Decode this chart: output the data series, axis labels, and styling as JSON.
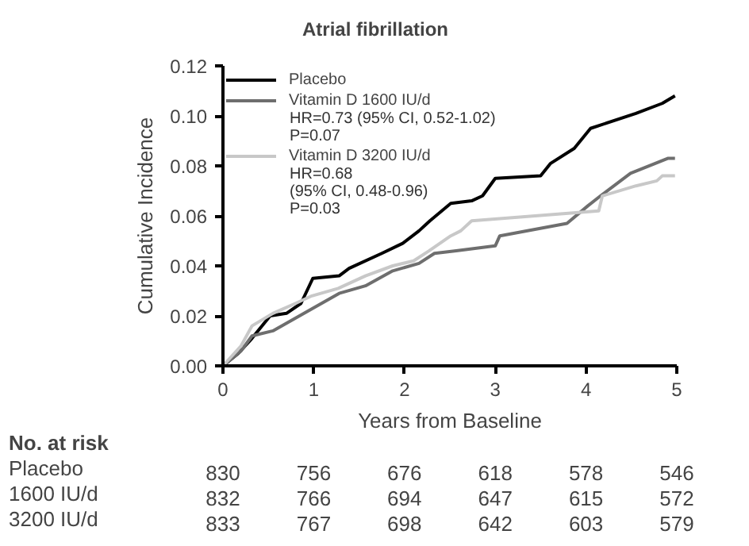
{
  "chart_data": {
    "type": "line",
    "title": "Atrial fibrillation",
    "xlabel": "Years from Baseline",
    "ylabel": "Cumulative Incidence",
    "xlim": [
      0,
      5
    ],
    "ylim": [
      0,
      0.12
    ],
    "xticks": [
      0,
      1,
      2,
      3,
      4,
      5
    ],
    "yticks": [
      {
        "value": 0,
        "label": "0.00"
      },
      {
        "value": 0.02,
        "label": "0.02"
      },
      {
        "value": 0.04,
        "label": "0.04"
      },
      {
        "value": 0.06,
        "label": "0.06"
      },
      {
        "value": 0.08,
        "label": "0.08"
      },
      {
        "value": 0.1,
        "label": "0.10"
      },
      {
        "value": 0.12,
        "label": "0.12"
      }
    ],
    "grid": false,
    "legend": "top left",
    "marker": "none",
    "line_style": "solid",
    "series": [
      {
        "name": "Placebo",
        "color": "#000000",
        "x": [
          0,
          0.17,
          0.32,
          0.52,
          0.7,
          0.86,
          0.99,
          1.28,
          1.39,
          1.75,
          1.98,
          2.16,
          2.28,
          2.51,
          2.74,
          2.86,
          3.0,
          3.5,
          3.61,
          3.87,
          4.05,
          4.55,
          4.84,
          4.98
        ],
        "values": [
          0,
          0.005,
          0.011,
          0.02,
          0.021,
          0.025,
          0.035,
          0.036,
          0.039,
          0.045,
          0.049,
          0.054,
          0.058,
          0.065,
          0.066,
          0.068,
          0.075,
          0.076,
          0.081,
          0.087,
          0.095,
          0.101,
          0.105,
          0.108
        ]
      },
      {
        "name": "Vitamin D 1600 IU/d",
        "color": "#6e6e6e",
        "x": [
          0,
          0.2,
          0.32,
          0.55,
          0.99,
          1.28,
          1.57,
          1.87,
          2.16,
          2.33,
          2.57,
          3.0,
          3.05,
          3.79,
          4.02,
          4.16,
          4.49,
          4.9,
          4.98
        ],
        "values": [
          0,
          0.006,
          0.012,
          0.014,
          0.023,
          0.029,
          0.032,
          0.038,
          0.041,
          0.045,
          0.046,
          0.048,
          0.052,
          0.057,
          0.064,
          0.068,
          0.077,
          0.083,
          0.083
        ]
      },
      {
        "name": "Vitamin D 3200 IU/d",
        "color": "#c8c8c8",
        "x": [
          0,
          0.2,
          0.32,
          0.55,
          0.8,
          0.98,
          1.27,
          1.57,
          1.87,
          2.1,
          2.27,
          2.51,
          2.62,
          2.74,
          4.14,
          4.18,
          4.55,
          4.78,
          4.84,
          4.98
        ],
        "values": [
          0,
          0.008,
          0.016,
          0.021,
          0.025,
          0.028,
          0.031,
          0.036,
          0.04,
          0.042,
          0.046,
          0.052,
          0.054,
          0.058,
          0.062,
          0.068,
          0.072,
          0.074,
          0.076,
          0.076
        ]
      }
    ],
    "annotations": [
      "HR=0.73 (95% CI, 0.52-1.02)\nP=0.07",
      "HR=0.68\n(95% CI, 0.48-0.96)\nP=0.03",
      "No. at risk",
      "Placebo",
      "830",
      "756",
      "676",
      "618",
      "578",
      "546",
      "1600 IU/d",
      "832",
      "766",
      "694",
      "647",
      "615",
      "572",
      "3200 IU/d",
      "833",
      "767",
      "698",
      "642",
      "603",
      "579"
    ]
  }
}
